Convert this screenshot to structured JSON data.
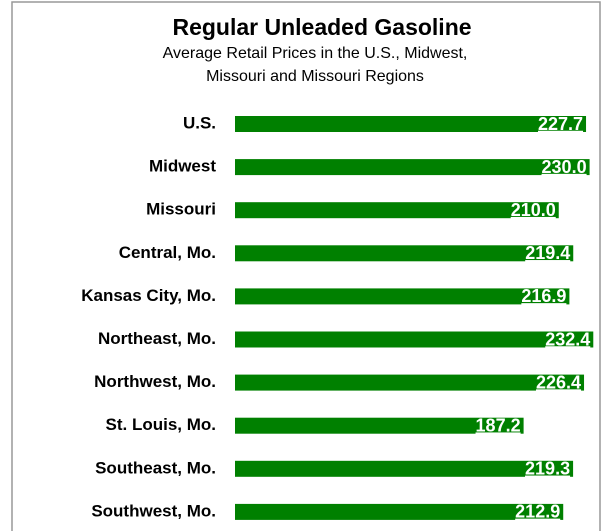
{
  "chart_data": {
    "type": "bar",
    "orientation": "horizontal",
    "title": "Regular Unleaded Gasoline",
    "subtitle": [
      "Average Retail Prices in the U.S., Midwest,",
      "Missouri and Missouri Regions"
    ],
    "categories": [
      "U.S.",
      "Midwest",
      "Missouri",
      "Central, Mo.",
      "Kansas City, Mo.",
      "Northeast, Mo.",
      "Northwest, Mo.",
      "St. Louis, Mo.",
      "Southeast, Mo.",
      "Southwest, Mo."
    ],
    "values": [
      227.7,
      230.0,
      210.0,
      219.4,
      216.9,
      232.4,
      226.4,
      187.2,
      219.3,
      212.9
    ],
    "value_labels": [
      "227.7",
      "230.0",
      "210.0",
      "219.4",
      "216.9",
      "232.4",
      "226.4",
      "187.2",
      "219.3",
      "212.9"
    ],
    "color": "#008000",
    "xlim": [
      0,
      240
    ]
  }
}
